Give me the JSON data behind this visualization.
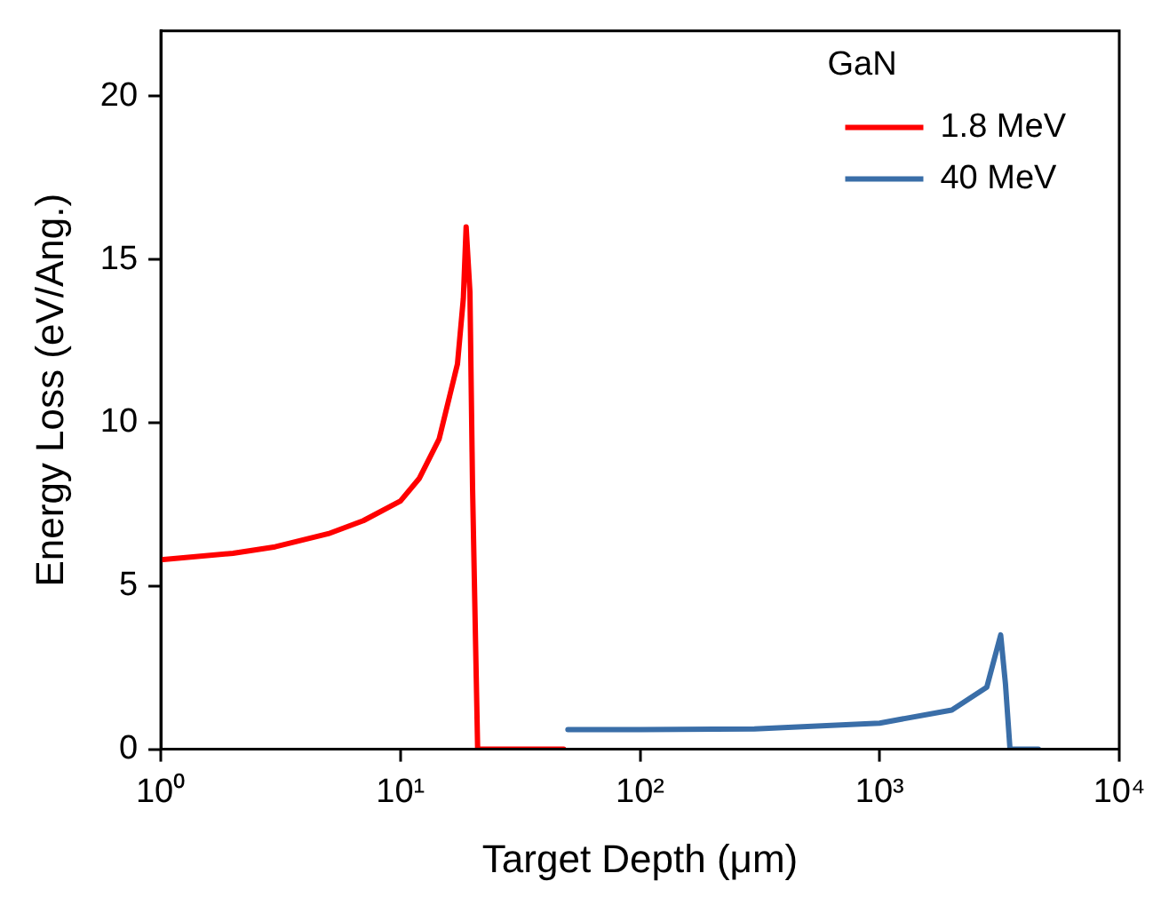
{
  "chart_data": {
    "type": "line",
    "xlabel": "Target Depth (μm)",
    "ylabel": "Energy Loss (eV/Ang.)",
    "legend_title": "GaN",
    "log": "x",
    "xlim": [
      1,
      10000
    ],
    "xticks": [
      {
        "value": 1,
        "label": "10⁰"
      },
      {
        "value": 10,
        "label": "10¹"
      },
      {
        "value": 100,
        "label": "10²"
      },
      {
        "value": 1000,
        "label": "10³"
      },
      {
        "value": 10000,
        "label": "10⁴"
      }
    ],
    "ylim": [
      0,
      22
    ],
    "yticks": [
      0,
      5,
      10,
      15,
      20
    ],
    "grid": false,
    "legend": "top right",
    "marker": "none",
    "line_style": "solid",
    "series": [
      {
        "name": "1.8 MeV",
        "color": "#ff0000",
        "x": [
          1,
          2,
          3,
          5,
          7,
          10,
          12,
          14.5,
          17.3,
          18.3,
          18.8,
          19.5,
          20,
          21,
          30,
          48
        ],
        "values": [
          5.8,
          6.0,
          6.2,
          6.6,
          7.0,
          7.6,
          8.3,
          9.5,
          11.8,
          13.8,
          16,
          14,
          8,
          0,
          0,
          0
        ]
      },
      {
        "name": "40 MeV",
        "color": "#3a6ea8",
        "x": [
          50,
          100,
          300,
          1000,
          2000,
          2800,
          3200,
          3350,
          3500,
          4600
        ],
        "values": [
          0.6,
          0.6,
          0.62,
          0.8,
          1.2,
          1.9,
          3.5,
          2,
          0,
          0
        ]
      }
    ]
  }
}
